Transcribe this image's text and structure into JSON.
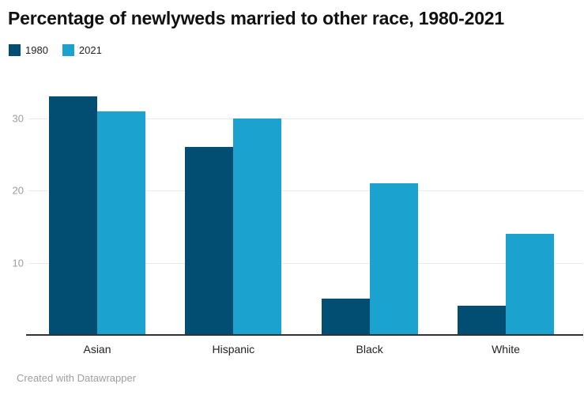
{
  "page": {
    "title": "Percentage of newlyweds married to other race, 1980-2021",
    "footer": "Created with Datawrapper"
  },
  "legend": {
    "items": [
      {
        "label": "1980",
        "color": "#024d72"
      },
      {
        "label": "2021",
        "color": "#1ca2cf"
      }
    ]
  },
  "colors": {
    "series_1980": "#024d72",
    "series_2021": "#1ca2cf",
    "gridline": "#ebebeb",
    "axis": "#333333",
    "tick_label": "#9d9d9d",
    "footer_text": "#9e9e9e"
  },
  "chart_data": {
    "type": "bar",
    "categories": [
      "Asian",
      "Hispanic",
      "Black",
      "White"
    ],
    "series": [
      {
        "name": "1980",
        "color": "#024d72",
        "values": [
          33,
          26,
          5,
          4
        ]
      },
      {
        "name": "2021",
        "color": "#1ca2cf",
        "values": [
          31,
          30,
          21,
          14
        ]
      }
    ],
    "title": "Percentage of newlyweds married to other race, 1980-2021",
    "xlabel": "",
    "ylabel": "",
    "yticks": [
      10,
      20,
      30
    ],
    "ylim": [
      0,
      35
    ],
    "grid": true,
    "legend_position": "top-left"
  }
}
